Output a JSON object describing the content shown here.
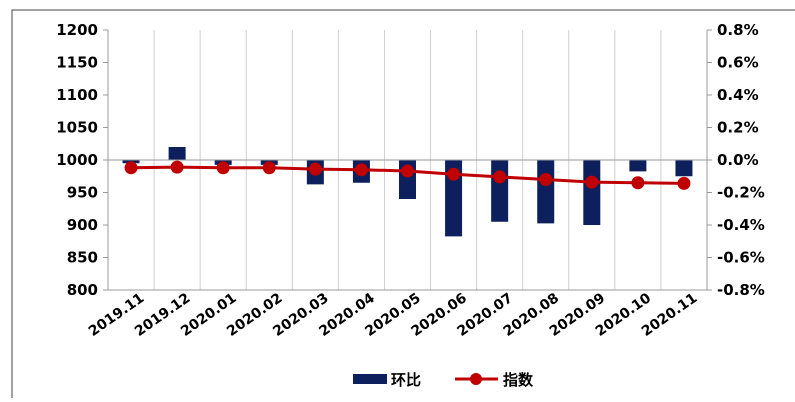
{
  "chart_data": {
    "type": "bar",
    "categories": [
      "2019.11",
      "2019.12",
      "2020.01",
      "2020.02",
      "2020.03",
      "2020.04",
      "2020.05",
      "2020.06",
      "2020.07",
      "2020.08",
      "2020.09",
      "2020.10",
      "2020.11"
    ],
    "series": [
      {
        "name": "环比",
        "type": "bar",
        "axis": "right",
        "color": "#0d1f5c",
        "values": [
          -0.02,
          0.08,
          -0.03,
          -0.03,
          -0.15,
          -0.14,
          -0.24,
          -0.47,
          -0.38,
          -0.39,
          -0.4,
          -0.07,
          -0.1
        ]
      },
      {
        "name": "指数",
        "type": "line",
        "axis": "left",
        "color": "#c00000",
        "values": [
          988,
          989,
          988,
          988,
          986,
          985,
          983,
          978,
          974,
          970,
          966,
          965,
          964
        ]
      }
    ],
    "y_left": {
      "min": 800,
      "max": 1200,
      "step": 50,
      "ticks": [
        "1200",
        "1150",
        "1100",
        "1050",
        "1000",
        "950",
        "900",
        "850",
        "800"
      ]
    },
    "y_right": {
      "min": -0.8,
      "max": 0.8,
      "step": 0.2,
      "ticks": [
        "0.8%",
        "0.6%",
        "0.4%",
        "0.2%",
        "0.0%",
        "-0.2%",
        "-0.4%",
        "-0.6%",
        "-0.8%"
      ]
    },
    "grid": "vertical",
    "legend": {
      "position": "bottom",
      "items": [
        "环比",
        "指数"
      ]
    },
    "title": "",
    "xlabel": "",
    "ylabel": ""
  }
}
